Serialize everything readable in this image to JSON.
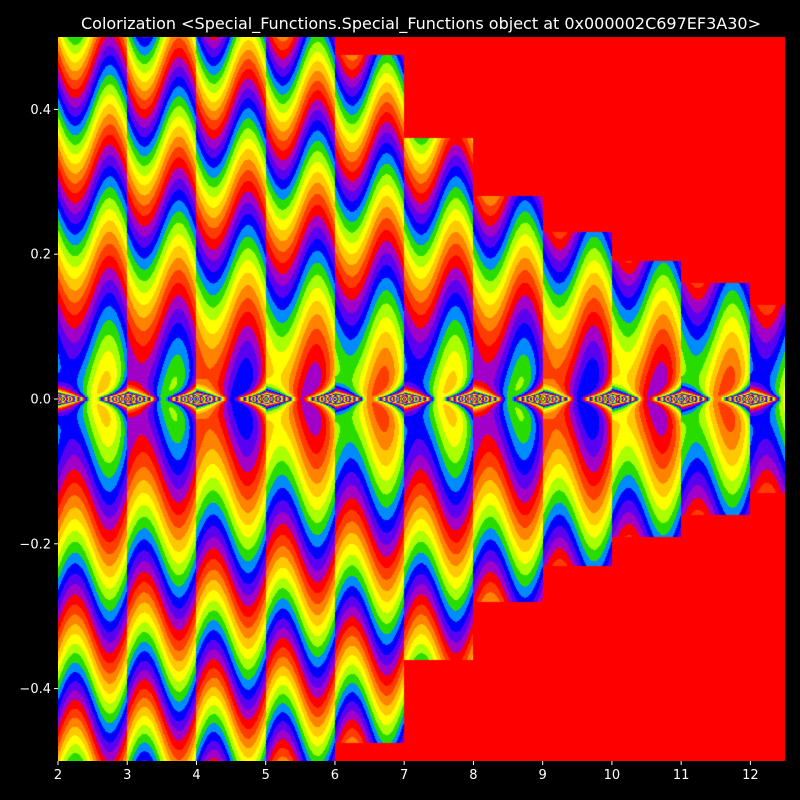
{
  "chart_data": {
    "type": "heatmap",
    "title": "Colorization <Special_Functions.Special_Functions object at 0x000002C697EF3A30>",
    "xlabel": "",
    "ylabel": "",
    "xlim": [
      2,
      12.5
    ],
    "ylim": [
      -0.5,
      0.5
    ],
    "x_ticks": [
      2,
      3,
      4,
      5,
      6,
      7,
      8,
      9,
      10,
      11,
      12
    ],
    "y_ticks": [
      0.4,
      0.2,
      0.0,
      -0.2,
      -0.4
    ],
    "x_tick_labels": [
      "2",
      "3",
      "4",
      "5",
      "6",
      "7",
      "8",
      "9",
      "10",
      "11",
      "12"
    ],
    "y_tick_labels": [
      "0.4",
      "0.2",
      "0.0",
      "−0.2",
      "−0.4"
    ],
    "colormap": "prism",
    "background_fill": "#ff0000",
    "grid": false,
    "segments": [
      {
        "x_start": 2,
        "x_end": 3,
        "extent": 0.5
      },
      {
        "x_start": 3,
        "x_end": 4,
        "extent": 0.5
      },
      {
        "x_start": 4,
        "x_end": 5,
        "extent": 0.5
      },
      {
        "x_start": 5,
        "x_end": 6,
        "extent": 0.5
      },
      {
        "x_start": 6,
        "x_end": 7,
        "extent": 0.475
      },
      {
        "x_start": 7,
        "x_end": 8,
        "extent": 0.36
      },
      {
        "x_start": 8,
        "x_end": 9,
        "extent": 0.28
      },
      {
        "x_start": 9,
        "x_end": 10,
        "extent": 0.23
      },
      {
        "x_start": 10,
        "x_end": 11,
        "extent": 0.19
      },
      {
        "x_start": 11,
        "x_end": 12,
        "extent": 0.16
      },
      {
        "x_start": 12,
        "x_end": 12.5,
        "extent": 0.13
      }
    ]
  }
}
